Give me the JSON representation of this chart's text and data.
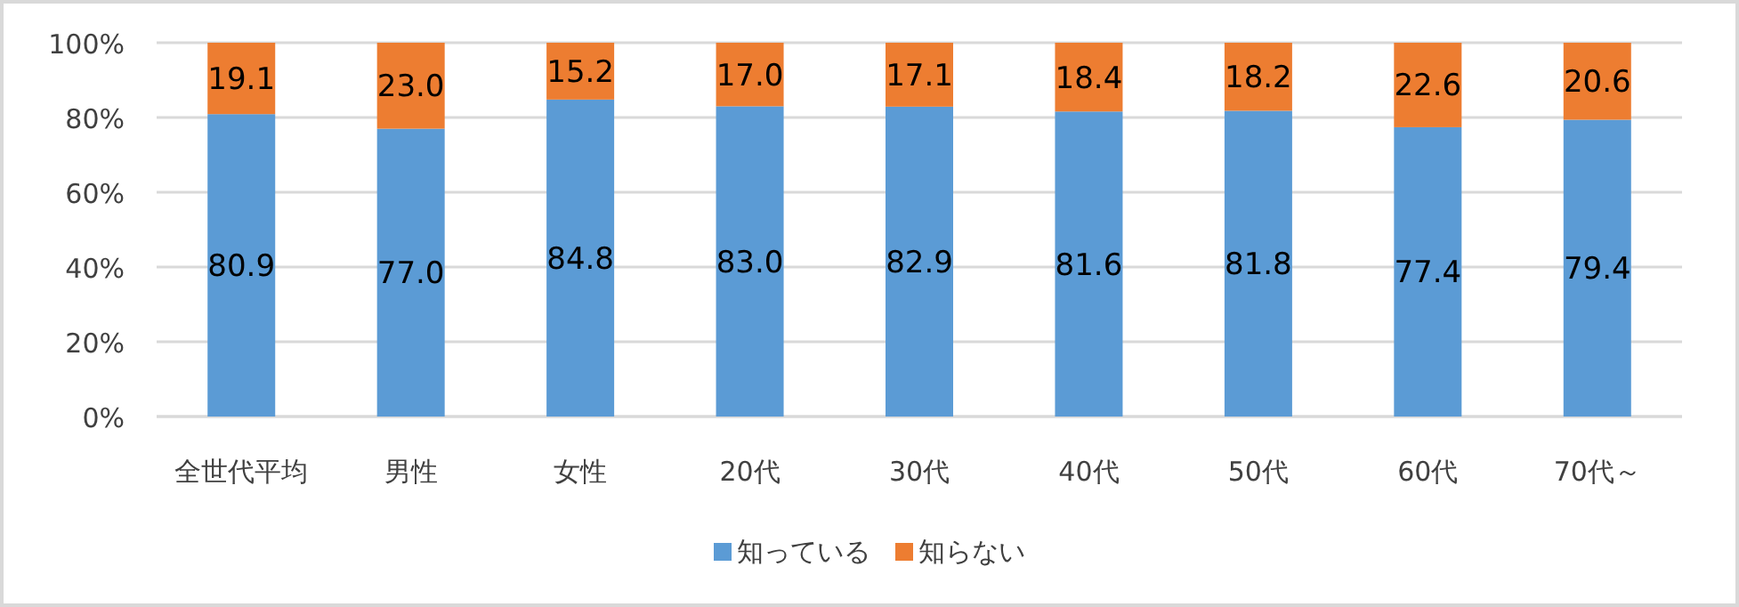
{
  "chart_data": {
    "type": "bar",
    "stacked": true,
    "categories": [
      "全世代平均",
      "男性",
      "女性",
      "20代",
      "30代",
      "40代",
      "50代",
      "60代",
      "70代～"
    ],
    "series": [
      {
        "name": "知っている",
        "color": "#5b9bd5",
        "values": [
          80.9,
          77.0,
          84.8,
          83.0,
          82.9,
          81.6,
          81.8,
          77.4,
          79.4
        ],
        "value_labels": [
          "80.9",
          "77.0",
          "84.8",
          "83.0",
          "82.9",
          "81.6",
          "81.8",
          "77.4",
          "79.4"
        ]
      },
      {
        "name": "知らない",
        "color": "#ed7d31",
        "values": [
          19.1,
          23.0,
          15.2,
          17.0,
          17.1,
          18.4,
          18.2,
          22.6,
          20.6
        ],
        "value_labels": [
          "19.1",
          "23.0",
          "15.2",
          "17.0",
          "17.1",
          "18.4",
          "18.2",
          "22.6",
          "20.6"
        ]
      }
    ],
    "ylim": [
      0,
      100
    ],
    "yticks": [
      {
        "value": 0,
        "label": "0%"
      },
      {
        "value": 20,
        "label": "20%"
      },
      {
        "value": 40,
        "label": "40%"
      },
      {
        "value": 60,
        "label": "60%"
      },
      {
        "value": 80,
        "label": "80%"
      },
      {
        "value": 100,
        "label": "100%"
      }
    ],
    "grid": "y",
    "legend": "bottom"
  }
}
